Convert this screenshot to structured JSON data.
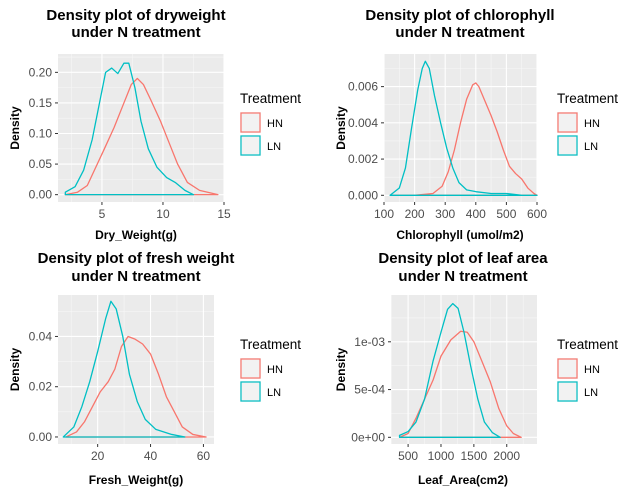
{
  "legend": {
    "title": "Treatment",
    "entries": [
      {
        "label": "HN",
        "color": "#F8766D"
      },
      {
        "label": "LN",
        "color": "#00BFC4"
      }
    ]
  },
  "chart_data": [
    {
      "type": "line",
      "title": [
        "Density plot of dryweight",
        "under N treatment"
      ],
      "xlabel": "Dry_Weight(g)",
      "ylabel": "Density",
      "xlim": [
        1.4,
        15.0
      ],
      "ylim": [
        -0.012,
        0.23
      ],
      "x_ticks": [
        {
          "v": 5,
          "label": "5"
        },
        {
          "v": 10,
          "label": "10"
        },
        {
          "v": 15,
          "label": "15"
        }
      ],
      "y_ticks": [
        {
          "v": 0.0,
          "label": "0.00"
        },
        {
          "v": 0.05,
          "label": "0.05"
        },
        {
          "v": 0.1,
          "label": "0.10"
        },
        {
          "v": 0.15,
          "label": "0.15"
        },
        {
          "v": 0.2,
          "label": "0.20"
        }
      ],
      "series": [
        {
          "name": "HN",
          "color": "#F8766D",
          "points": [
            [
              2.0,
              0.0
            ],
            [
              3.0,
              0.004
            ],
            [
              3.8,
              0.015
            ],
            [
              4.5,
              0.045
            ],
            [
              5.2,
              0.075
            ],
            [
              6.0,
              0.11
            ],
            [
              6.8,
              0.15
            ],
            [
              7.4,
              0.18
            ],
            [
              7.9,
              0.19
            ],
            [
              8.4,
              0.18
            ],
            [
              9.0,
              0.155
            ],
            [
              9.8,
              0.12
            ],
            [
              10.5,
              0.085
            ],
            [
              11.2,
              0.05
            ],
            [
              12.0,
              0.02
            ],
            [
              13.0,
              0.007
            ],
            [
              14.5,
              0.0
            ]
          ]
        },
        {
          "name": "LN",
          "color": "#00BFC4",
          "points": [
            [
              2.0,
              0.004
            ],
            [
              2.8,
              0.013
            ],
            [
              3.5,
              0.04
            ],
            [
              4.2,
              0.09
            ],
            [
              4.8,
              0.15
            ],
            [
              5.3,
              0.2
            ],
            [
              5.8,
              0.207
            ],
            [
              6.3,
              0.198
            ],
            [
              6.8,
              0.215
            ],
            [
              7.2,
              0.215
            ],
            [
              7.7,
              0.175
            ],
            [
              8.2,
              0.12
            ],
            [
              8.8,
              0.075
            ],
            [
              9.5,
              0.045
            ],
            [
              10.3,
              0.028
            ],
            [
              11.0,
              0.02
            ],
            [
              11.8,
              0.007
            ],
            [
              12.5,
              0.0
            ]
          ]
        }
      ]
    },
    {
      "type": "line",
      "title": [
        "Density plot of chlorophyll",
        "under N treatment"
      ],
      "xlabel": "Chlorophyll (umol/m2)",
      "ylabel": "Density",
      "xlim": [
        100,
        600
      ],
      "ylim": [
        -0.00037,
        0.0078
      ],
      "x_ticks": [
        {
          "v": 100,
          "label": "100"
        },
        {
          "v": 200,
          "label": "200"
        },
        {
          "v": 300,
          "label": "300"
        },
        {
          "v": 400,
          "label": "400"
        },
        {
          "v": 500,
          "label": "500"
        },
        {
          "v": 600,
          "label": "600"
        }
      ],
      "y_ticks": [
        {
          "v": 0.0,
          "label": "0.000"
        },
        {
          "v": 0.002,
          "label": "0.002"
        },
        {
          "v": 0.004,
          "label": "0.004"
        },
        {
          "v": 0.006,
          "label": "0.006"
        }
      ],
      "series": [
        {
          "name": "HN",
          "color": "#F8766D",
          "points": [
            [
              120,
              0.0
            ],
            [
              200,
              0.0
            ],
            [
              260,
              0.0001
            ],
            [
              290,
              0.0005
            ],
            [
              310,
              0.0013
            ],
            [
              330,
              0.0025
            ],
            [
              350,
              0.004
            ],
            [
              370,
              0.0053
            ],
            [
              390,
              0.0061
            ],
            [
              400,
              0.0062
            ],
            [
              410,
              0.006
            ],
            [
              430,
              0.0052
            ],
            [
              450,
              0.0044
            ],
            [
              470,
              0.0035
            ],
            [
              490,
              0.0025
            ],
            [
              510,
              0.0016
            ],
            [
              530,
              0.0012
            ],
            [
              550,
              0.0009
            ],
            [
              570,
              0.0004
            ],
            [
              590,
              0.0001
            ],
            [
              600,
              0.0
            ]
          ]
        },
        {
          "name": "LN",
          "color": "#00BFC4",
          "points": [
            [
              120,
              0.0
            ],
            [
              150,
              0.0004
            ],
            [
              170,
              0.0015
            ],
            [
              190,
              0.0037
            ],
            [
              210,
              0.0058
            ],
            [
              225,
              0.007
            ],
            [
              235,
              0.0074
            ],
            [
              248,
              0.007
            ],
            [
              265,
              0.0055
            ],
            [
              285,
              0.004
            ],
            [
              305,
              0.0026
            ],
            [
              325,
              0.0015
            ],
            [
              345,
              0.0007
            ],
            [
              370,
              0.0003
            ],
            [
              400,
              0.0002
            ],
            [
              450,
              0.0001
            ],
            [
              500,
              0.0001
            ],
            [
              550,
              0.0
            ],
            [
              600,
              0.0
            ]
          ]
        }
      ]
    },
    {
      "type": "line",
      "title": [
        "Density plot of fresh weight",
        "under N treatment"
      ],
      "xlabel": "Fresh_Weight(g)",
      "ylabel": "Density",
      "xlim": [
        5.0,
        64.0
      ],
      "ylim": [
        -0.0028,
        0.0565
      ],
      "x_ticks": [
        {
          "v": 20,
          "label": "20"
        },
        {
          "v": 40,
          "label": "40"
        },
        {
          "v": 60,
          "label": "60"
        }
      ],
      "y_ticks": [
        {
          "v": 0.0,
          "label": "0.00"
        },
        {
          "v": 0.02,
          "label": "0.02"
        },
        {
          "v": 0.04,
          "label": "0.04"
        }
      ],
      "series": [
        {
          "name": "HN",
          "color": "#F8766D",
          "points": [
            [
              8.0,
              0.0
            ],
            [
              12.0,
              0.002
            ],
            [
              15.0,
              0.006
            ],
            [
              18.0,
              0.012
            ],
            [
              21.0,
              0.018
            ],
            [
              24.0,
              0.022
            ],
            [
              26.5,
              0.027
            ],
            [
              29.0,
              0.036
            ],
            [
              31.5,
              0.04
            ],
            [
              34.0,
              0.039
            ],
            [
              37.0,
              0.037
            ],
            [
              40.0,
              0.033
            ],
            [
              43.0,
              0.025
            ],
            [
              46.0,
              0.016
            ],
            [
              49.0,
              0.01
            ],
            [
              52.0,
              0.004
            ],
            [
              56.0,
              0.001
            ],
            [
              61.0,
              0.0
            ]
          ]
        },
        {
          "name": "LN",
          "color": "#00BFC4",
          "points": [
            [
              7.0,
              0.0
            ],
            [
              11.0,
              0.004
            ],
            [
              14.0,
              0.012
            ],
            [
              17.0,
              0.022
            ],
            [
              20.0,
              0.034
            ],
            [
              23.0,
              0.047
            ],
            [
              25.0,
              0.054
            ],
            [
              27.0,
              0.051
            ],
            [
              29.5,
              0.04
            ],
            [
              32.0,
              0.025
            ],
            [
              35.0,
              0.014
            ],
            [
              38.0,
              0.007
            ],
            [
              42.0,
              0.003
            ],
            [
              48.0,
              0.001
            ],
            [
              53.0,
              0.0
            ]
          ]
        }
      ]
    },
    {
      "type": "line",
      "title": [
        "Density plot of leaf area",
        "under N treatment"
      ],
      "xlabel": "Leaf_Area(cm2)",
      "ylabel": "Density",
      "xlim": [
        240,
        2460
      ],
      "ylim": [
        -7e-05,
        0.00149
      ],
      "x_ticks": [
        {
          "v": 500,
          "label": "500"
        },
        {
          "v": 1000,
          "label": "1000"
        },
        {
          "v": 1500,
          "label": "1500"
        },
        {
          "v": 2000,
          "label": "2000"
        }
      ],
      "y_ticks": [
        {
          "v": 0.0,
          "label": "0e+00"
        },
        {
          "v": 0.0005,
          "label": "5e-04"
        },
        {
          "v": 0.001,
          "label": "1e-03"
        }
      ],
      "series": [
        {
          "name": "HN",
          "color": "#F8766D",
          "points": [
            [
              370,
              0.0
            ],
            [
              500,
              4e-05
            ],
            [
              620,
              0.0002
            ],
            [
              750,
              0.0004
            ],
            [
              880,
              0.0006
            ],
            [
              1000,
              0.00085
            ],
            [
              1150,
              0.00102
            ],
            [
              1300,
              0.00111
            ],
            [
              1400,
              0.0011
            ],
            [
              1500,
              0.001
            ],
            [
              1620,
              0.0008
            ],
            [
              1750,
              0.00058
            ],
            [
              1880,
              0.0003
            ],
            [
              2000,
              0.00012
            ],
            [
              2100,
              4e-05
            ],
            [
              2220,
              0.0
            ]
          ]
        },
        {
          "name": "LN",
          "color": "#00BFC4",
          "points": [
            [
              370,
              2e-05
            ],
            [
              500,
              6e-05
            ],
            [
              620,
              0.00016
            ],
            [
              750,
              0.0004
            ],
            [
              880,
              0.0008
            ],
            [
              1000,
              0.0011
            ],
            [
              1100,
              0.00134
            ],
            [
              1180,
              0.0014
            ],
            [
              1260,
              0.00135
            ],
            [
              1350,
              0.0011
            ],
            [
              1450,
              0.00075
            ],
            [
              1560,
              0.0004
            ],
            [
              1660,
              0.00016
            ],
            [
              1780,
              5e-05
            ],
            [
              1900,
              0.0
            ]
          ]
        }
      ]
    }
  ]
}
